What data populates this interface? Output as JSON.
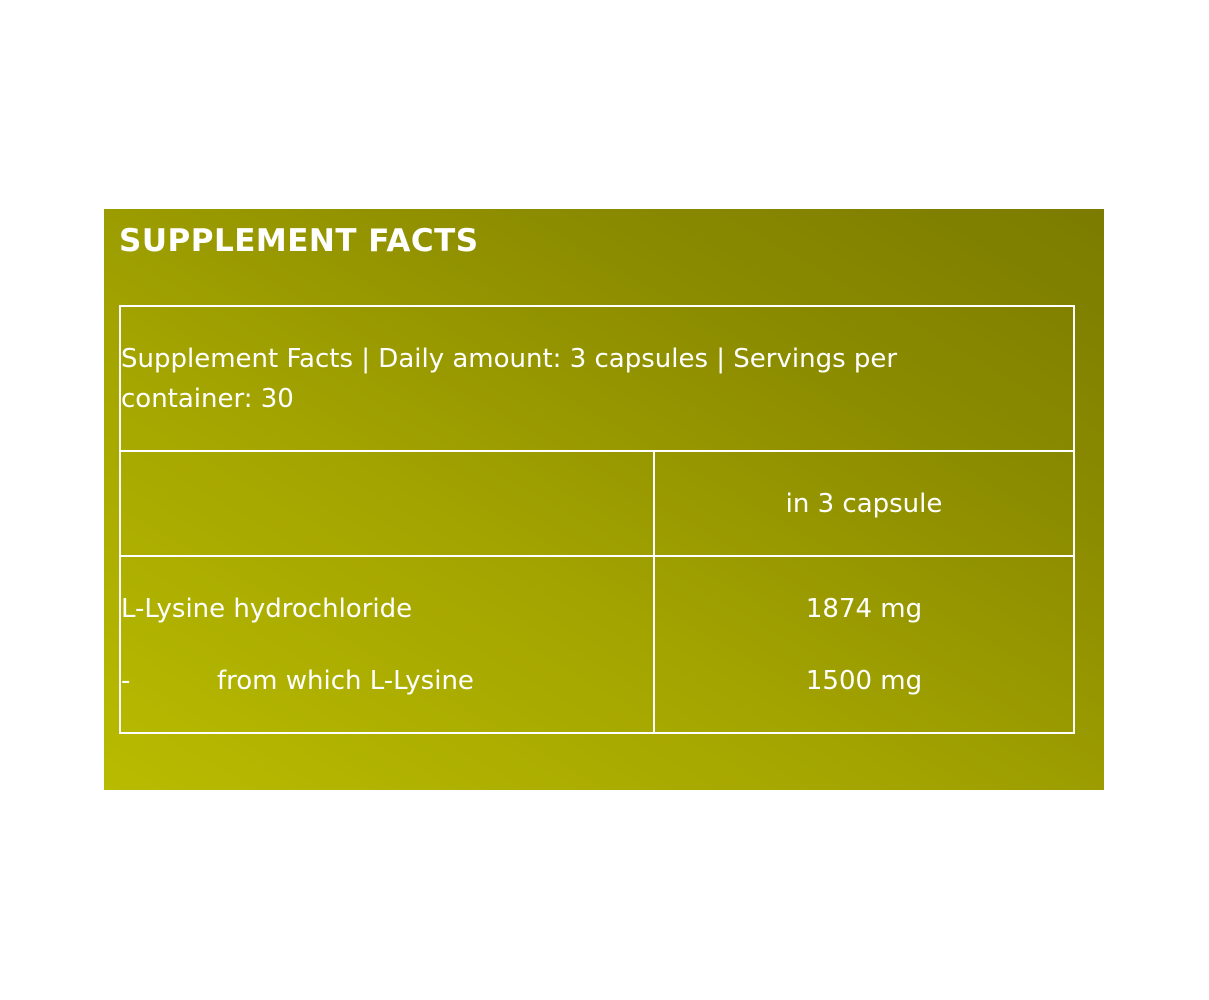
{
  "title": "SUPPLEMENT FACTS",
  "summary": "Supplement Facts | Daily amount: 3 capsules | Servings per container: 30",
  "column_header": "in 3 capsule",
  "rows": [
    {
      "name": "L-Lysine hydrochloride",
      "prefix": "",
      "amount": "1874 mg"
    },
    {
      "name": "from which L-Lysine",
      "prefix": "-",
      "amount": "1500 mg"
    }
  ],
  "colors": {
    "background_light": "#b9bb00",
    "background_dark": "#7b7b00",
    "text": "#ffffff"
  }
}
